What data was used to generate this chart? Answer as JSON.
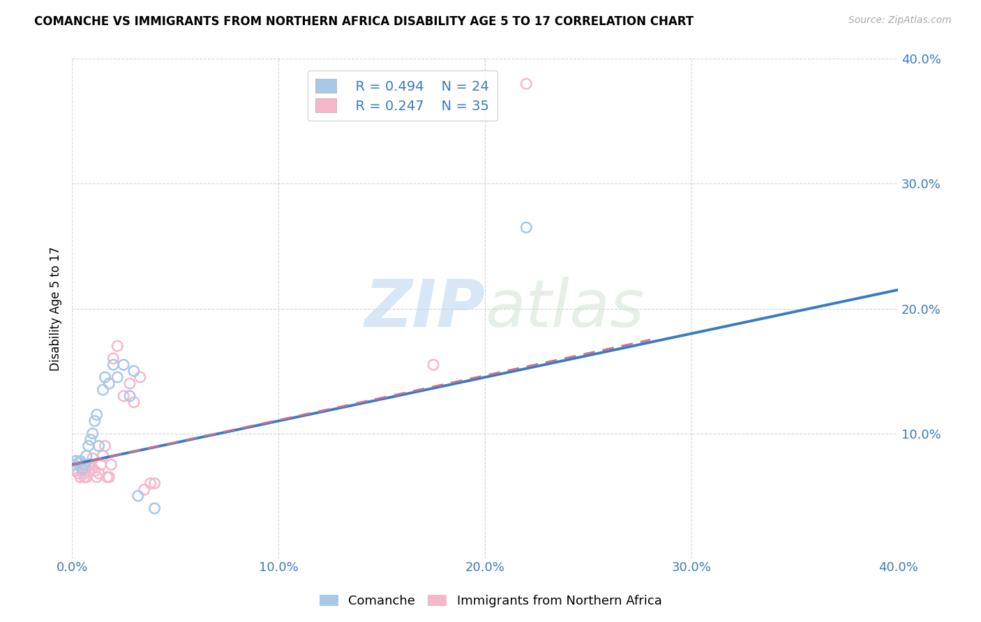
{
  "title": "COMANCHE VS IMMIGRANTS FROM NORTHERN AFRICA DISABILITY AGE 5 TO 17 CORRELATION CHART",
  "source": "Source: ZipAtlas.com",
  "ylabel": "Disability Age 5 to 17",
  "xlim": [
    0.0,
    0.4
  ],
  "ylim": [
    0.0,
    0.4
  ],
  "xticks": [
    0.0,
    0.1,
    0.2,
    0.3,
    0.4
  ],
  "yticks": [
    0.0,
    0.1,
    0.2,
    0.3,
    0.4
  ],
  "xtick_labels": [
    "0.0%",
    "10.0%",
    "20.0%",
    "30.0%",
    "40.0%"
  ],
  "ytick_labels": [
    "",
    "10.0%",
    "20.0%",
    "30.0%",
    "40.0%"
  ],
  "legend_r1": "R = 0.494",
  "legend_n1": "N = 24",
  "legend_r2": "R = 0.247",
  "legend_n2": "N = 35",
  "blue_color": "#a8c8e8",
  "pink_color": "#f4b8c8",
  "blue_line_color": "#3a7abf",
  "pink_line_color": "#c87090",
  "watermark_zip": "ZIP",
  "watermark_atlas": "atlas",
  "blue_line_x": [
    0.0,
    0.4
  ],
  "blue_line_y": [
    0.075,
    0.215
  ],
  "pink_line_x": [
    0.0,
    0.28
  ],
  "pink_line_y": [
    0.075,
    0.175
  ],
  "comanche_x": [
    0.001,
    0.002,
    0.003,
    0.004,
    0.005,
    0.006,
    0.007,
    0.008,
    0.009,
    0.01,
    0.011,
    0.012,
    0.013,
    0.015,
    0.016,
    0.018,
    0.02,
    0.022,
    0.025,
    0.028,
    0.03,
    0.032,
    0.04,
    0.22
  ],
  "comanche_y": [
    0.075,
    0.078,
    0.076,
    0.078,
    0.072,
    0.075,
    0.082,
    0.09,
    0.095,
    0.1,
    0.11,
    0.115,
    0.09,
    0.135,
    0.145,
    0.14,
    0.155,
    0.145,
    0.155,
    0.13,
    0.15,
    0.05,
    0.04,
    0.265
  ],
  "immigrant_x": [
    0.001,
    0.002,
    0.003,
    0.004,
    0.005,
    0.005,
    0.006,
    0.006,
    0.007,
    0.007,
    0.008,
    0.008,
    0.009,
    0.01,
    0.01,
    0.011,
    0.012,
    0.013,
    0.014,
    0.015,
    0.016,
    0.017,
    0.018,
    0.019,
    0.02,
    0.022,
    0.025,
    0.028,
    0.03,
    0.033,
    0.035,
    0.038,
    0.04,
    0.175,
    0.22
  ],
  "immigrant_y": [
    0.072,
    0.07,
    0.068,
    0.065,
    0.07,
    0.072,
    0.065,
    0.068,
    0.072,
    0.065,
    0.07,
    0.075,
    0.075,
    0.072,
    0.08,
    0.07,
    0.065,
    0.068,
    0.075,
    0.082,
    0.09,
    0.065,
    0.065,
    0.075,
    0.16,
    0.17,
    0.13,
    0.14,
    0.125,
    0.145,
    0.055,
    0.06,
    0.06,
    0.155,
    0.38
  ]
}
